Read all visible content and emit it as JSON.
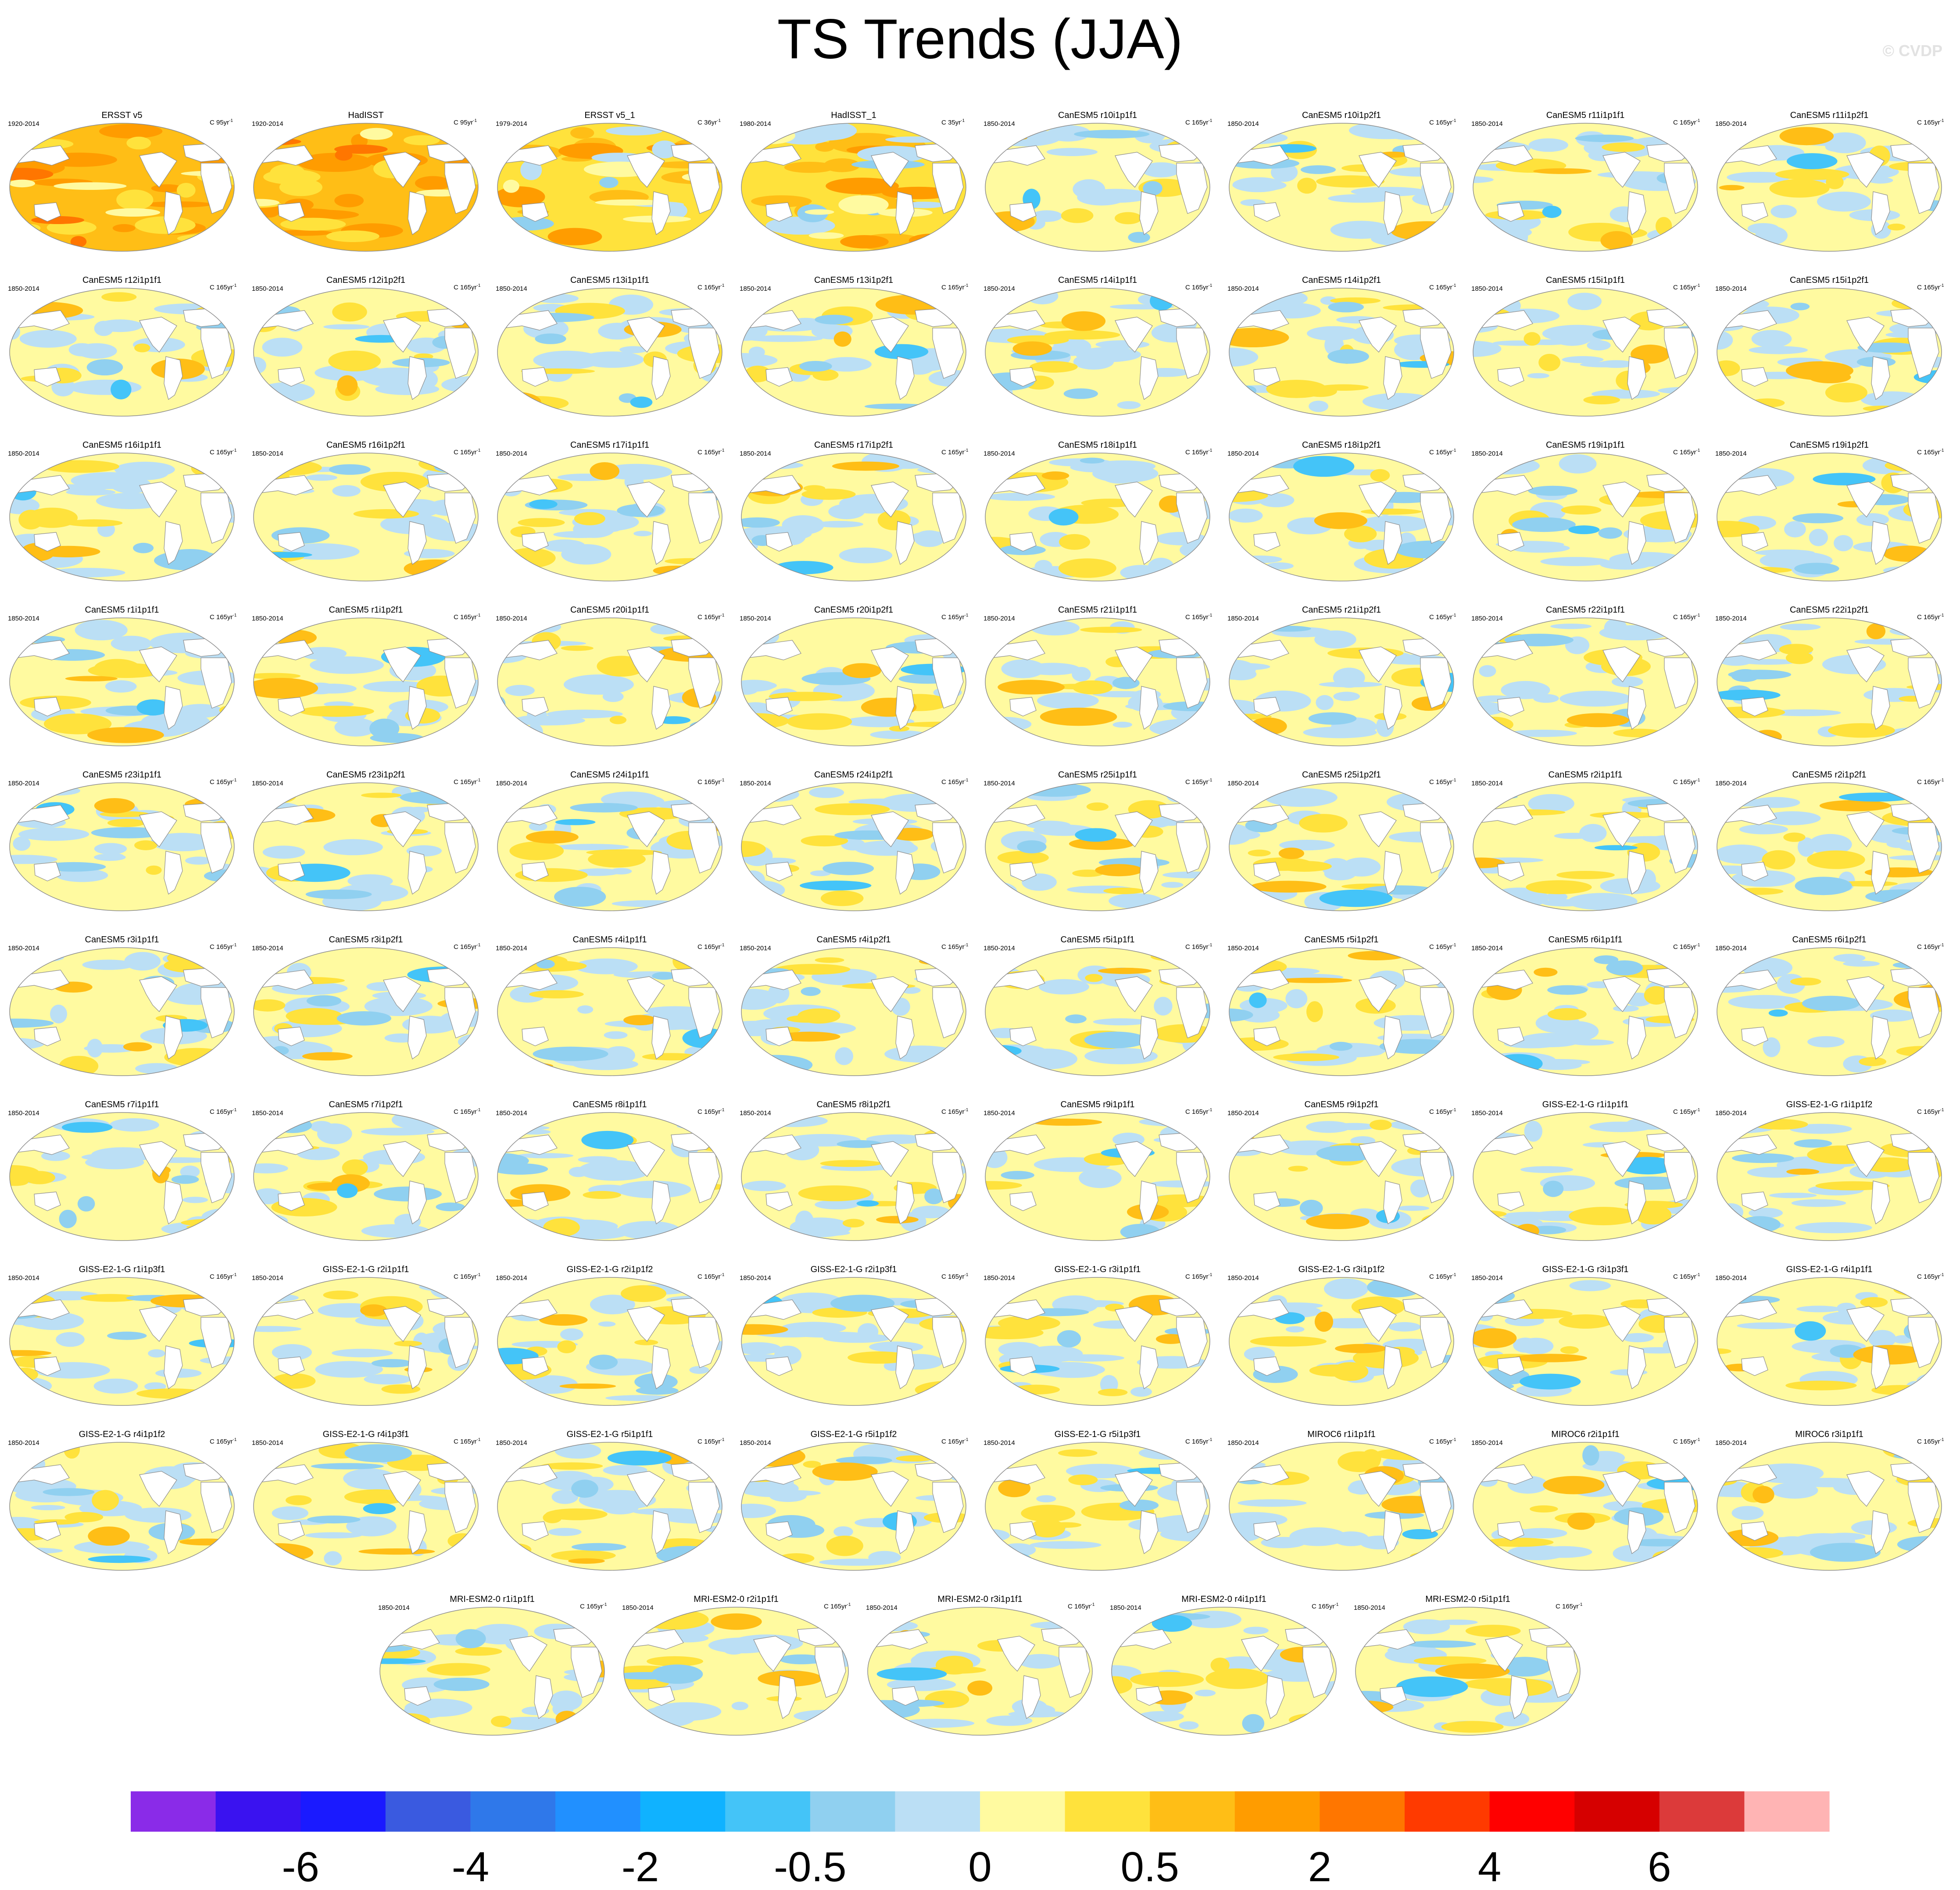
{
  "header": {
    "title": "TS Trends (JJA)",
    "watermark": "© CVDP"
  },
  "colors": {
    "land": "#ffffff",
    "coast": "#8c8c8c"
  },
  "chart_data": {
    "type": "heatmap",
    "title": "TS Trends (JJA)",
    "projection": "Robinson global map panels",
    "legend_placement": "bottom",
    "colorbar": {
      "tick_labels": [
        "-6",
        "-4",
        "-2",
        "-0.5",
        "0",
        "0.5",
        "2",
        "4",
        "6"
      ],
      "colors": [
        "#8a2be8",
        "#3a12f0",
        "#1a1aff",
        "#3a5ae0",
        "#2f78ea",
        "#2190ff",
        "#10b2ff",
        "#44c4f8",
        "#90d0f0",
        "#bbdff5",
        "#fffaa0",
        "#ffe23c",
        "#ffbe16",
        "#ff9c00",
        "#ff7600",
        "#ff3a00",
        "#ff0000",
        "#d60000",
        "#dc3a3a",
        "#ffb4b4"
      ]
    },
    "panels": [
      {
        "title": "ERSST v5",
        "left": "1920-2014",
        "right": "C 95yr",
        "pattern": "warm-strong"
      },
      {
        "title": "HadISST",
        "left": "1920-2014",
        "right": "C 95yr",
        "pattern": "warm-strong"
      },
      {
        "title": "ERSST v5_1",
        "left": "1979-2014",
        "right": "C 36yr",
        "pattern": "warm-mixed"
      },
      {
        "title": "HadISST_1",
        "left": "1980-2014",
        "right": "C 35yr",
        "pattern": "warm-mixed"
      },
      {
        "title": "CanESM5 r10i1p1f1",
        "left": "1850-2014",
        "right": "C 165yr",
        "pattern": "mixed"
      },
      {
        "title": "CanESM5 r10i1p2f1",
        "left": "1850-2014",
        "right": "C 165yr",
        "pattern": "mixed"
      },
      {
        "title": "CanESM5 r11i1p1f1",
        "left": "1850-2014",
        "right": "C 165yr",
        "pattern": "mixed"
      },
      {
        "title": "CanESM5 r11i1p2f1",
        "left": "1850-2014",
        "right": "C 165yr",
        "pattern": "mixed"
      },
      {
        "title": "CanESM5 r12i1p1f1",
        "left": "1850-2014",
        "right": "C 165yr",
        "pattern": "mixed"
      },
      {
        "title": "CanESM5 r12i1p2f1",
        "left": "1850-2014",
        "right": "C 165yr",
        "pattern": "mixed"
      },
      {
        "title": "CanESM5 r13i1p1f1",
        "left": "1850-2014",
        "right": "C 165yr",
        "pattern": "mixed"
      },
      {
        "title": "CanESM5 r13i1p2f1",
        "left": "1850-2014",
        "right": "C 165yr",
        "pattern": "mixed"
      },
      {
        "title": "CanESM5 r14i1p1f1",
        "left": "1850-2014",
        "right": "C 165yr",
        "pattern": "mixed"
      },
      {
        "title": "CanESM5 r14i1p2f1",
        "left": "1850-2014",
        "right": "C 165yr",
        "pattern": "mixed"
      },
      {
        "title": "CanESM5 r15i1p1f1",
        "left": "1850-2014",
        "right": "C 165yr",
        "pattern": "mixed"
      },
      {
        "title": "CanESM5 r15i1p2f1",
        "left": "1850-2014",
        "right": "C 165yr",
        "pattern": "mixed"
      },
      {
        "title": "CanESM5 r16i1p1f1",
        "left": "1850-2014",
        "right": "C 165yr",
        "pattern": "mixed"
      },
      {
        "title": "CanESM5 r16i1p2f1",
        "left": "1850-2014",
        "right": "C 165yr",
        "pattern": "mixed"
      },
      {
        "title": "CanESM5 r17i1p1f1",
        "left": "1850-2014",
        "right": "C 165yr",
        "pattern": "mixed"
      },
      {
        "title": "CanESM5 r17i1p2f1",
        "left": "1850-2014",
        "right": "C 165yr",
        "pattern": "mixed"
      },
      {
        "title": "CanESM5 r18i1p1f1",
        "left": "1850-2014",
        "right": "C 165yr",
        "pattern": "mixed"
      },
      {
        "title": "CanESM5 r18i1p2f1",
        "left": "1850-2014",
        "right": "C 165yr",
        "pattern": "mixed"
      },
      {
        "title": "CanESM5 r19i1p1f1",
        "left": "1850-2014",
        "right": "C 165yr",
        "pattern": "mixed"
      },
      {
        "title": "CanESM5 r19i1p2f1",
        "left": "1850-2014",
        "right": "C 165yr",
        "pattern": "mixed"
      },
      {
        "title": "CanESM5 r1i1p1f1",
        "left": "1850-2014",
        "right": "C 165yr",
        "pattern": "mixed"
      },
      {
        "title": "CanESM5 r1i1p2f1",
        "left": "1850-2014",
        "right": "C 165yr",
        "pattern": "mixed"
      },
      {
        "title": "CanESM5 r20i1p1f1",
        "left": "1850-2014",
        "right": "C 165yr",
        "pattern": "mixed"
      },
      {
        "title": "CanESM5 r20i1p2f1",
        "left": "1850-2014",
        "right": "C 165yr",
        "pattern": "mixed"
      },
      {
        "title": "CanESM5 r21i1p1f1",
        "left": "1850-2014",
        "right": "C 165yr",
        "pattern": "mixed"
      },
      {
        "title": "CanESM5 r21i1p2f1",
        "left": "1850-2014",
        "right": "C 165yr",
        "pattern": "mixed"
      },
      {
        "title": "CanESM5 r22i1p1f1",
        "left": "1850-2014",
        "right": "C 165yr",
        "pattern": "mixed"
      },
      {
        "title": "CanESM5 r22i1p2f1",
        "left": "1850-2014",
        "right": "C 165yr",
        "pattern": "mixed"
      },
      {
        "title": "CanESM5 r23i1p1f1",
        "left": "1850-2014",
        "right": "C 165yr",
        "pattern": "mixed"
      },
      {
        "title": "CanESM5 r23i1p2f1",
        "left": "1850-2014",
        "right": "C 165yr",
        "pattern": "mixed"
      },
      {
        "title": "CanESM5 r24i1p1f1",
        "left": "1850-2014",
        "right": "C 165yr",
        "pattern": "mixed"
      },
      {
        "title": "CanESM5 r24i1p2f1",
        "left": "1850-2014",
        "right": "C 165yr",
        "pattern": "mixed"
      },
      {
        "title": "CanESM5 r25i1p1f1",
        "left": "1850-2014",
        "right": "C 165yr",
        "pattern": "mixed"
      },
      {
        "title": "CanESM5 r25i1p2f1",
        "left": "1850-2014",
        "right": "C 165yr",
        "pattern": "mixed"
      },
      {
        "title": "CanESM5 r2i1p1f1",
        "left": "1850-2014",
        "right": "C 165yr",
        "pattern": "mixed"
      },
      {
        "title": "CanESM5 r2i1p2f1",
        "left": "1850-2014",
        "right": "C 165yr",
        "pattern": "mixed"
      },
      {
        "title": "CanESM5 r3i1p1f1",
        "left": "1850-2014",
        "right": "C 165yr",
        "pattern": "mixed"
      },
      {
        "title": "CanESM5 r3i1p2f1",
        "left": "1850-2014",
        "right": "C 165yr",
        "pattern": "mixed"
      },
      {
        "title": "CanESM5 r4i1p1f1",
        "left": "1850-2014",
        "right": "C 165yr",
        "pattern": "mixed"
      },
      {
        "title": "CanESM5 r4i1p2f1",
        "left": "1850-2014",
        "right": "C 165yr",
        "pattern": "mixed"
      },
      {
        "title": "CanESM5 r5i1p1f1",
        "left": "1850-2014",
        "right": "C 165yr",
        "pattern": "mixed"
      },
      {
        "title": "CanESM5 r5i1p2f1",
        "left": "1850-2014",
        "right": "C 165yr",
        "pattern": "mixed"
      },
      {
        "title": "CanESM5 r6i1p1f1",
        "left": "1850-2014",
        "right": "C 165yr",
        "pattern": "mixed"
      },
      {
        "title": "CanESM5 r6i1p2f1",
        "left": "1850-2014",
        "right": "C 165yr",
        "pattern": "mixed"
      },
      {
        "title": "CanESM5 r7i1p1f1",
        "left": "1850-2014",
        "right": "C 165yr",
        "pattern": "mixed"
      },
      {
        "title": "CanESM5 r7i1p2f1",
        "left": "1850-2014",
        "right": "C 165yr",
        "pattern": "mixed"
      },
      {
        "title": "CanESM5 r8i1p1f1",
        "left": "1850-2014",
        "right": "C 165yr",
        "pattern": "mixed"
      },
      {
        "title": "CanESM5 r8i1p2f1",
        "left": "1850-2014",
        "right": "C 165yr",
        "pattern": "mixed"
      },
      {
        "title": "CanESM5 r9i1p1f1",
        "left": "1850-2014",
        "right": "C 165yr",
        "pattern": "mixed"
      },
      {
        "title": "CanESM5 r9i1p2f1",
        "left": "1850-2014",
        "right": "C 165yr",
        "pattern": "mixed"
      },
      {
        "title": "GISS-E2-1-G r1i1p1f1",
        "left": "1850-2014",
        "right": "C 165yr",
        "pattern": "mixed"
      },
      {
        "title": "GISS-E2-1-G r1i1p1f2",
        "left": "1850-2014",
        "right": "C 165yr",
        "pattern": "mixed"
      },
      {
        "title": "GISS-E2-1-G r1i1p3f1",
        "left": "1850-2014",
        "right": "C 165yr",
        "pattern": "mixed"
      },
      {
        "title": "GISS-E2-1-G r2i1p1f1",
        "left": "1850-2014",
        "right": "C 165yr",
        "pattern": "mixed"
      },
      {
        "title": "GISS-E2-1-G r2i1p1f2",
        "left": "1850-2014",
        "right": "C 165yr",
        "pattern": "mixed"
      },
      {
        "title": "GISS-E2-1-G r2i1p3f1",
        "left": "1850-2014",
        "right": "C 165yr",
        "pattern": "mixed"
      },
      {
        "title": "GISS-E2-1-G r3i1p1f1",
        "left": "1850-2014",
        "right": "C 165yr",
        "pattern": "mixed"
      },
      {
        "title": "GISS-E2-1-G r3i1p1f2",
        "left": "1850-2014",
        "right": "C 165yr",
        "pattern": "mixed"
      },
      {
        "title": "GISS-E2-1-G r3i1p3f1",
        "left": "1850-2014",
        "right": "C 165yr",
        "pattern": "mixed"
      },
      {
        "title": "GISS-E2-1-G r4i1p1f1",
        "left": "1850-2014",
        "right": "C 165yr",
        "pattern": "mixed"
      },
      {
        "title": "GISS-E2-1-G r4i1p1f2",
        "left": "1850-2014",
        "right": "C 165yr",
        "pattern": "mixed"
      },
      {
        "title": "GISS-E2-1-G r4i1p3f1",
        "left": "1850-2014",
        "right": "C 165yr",
        "pattern": "mixed"
      },
      {
        "title": "GISS-E2-1-G r5i1p1f1",
        "left": "1850-2014",
        "right": "C 165yr",
        "pattern": "mixed"
      },
      {
        "title": "GISS-E2-1-G r5i1p1f2",
        "left": "1850-2014",
        "right": "C 165yr",
        "pattern": "mixed"
      },
      {
        "title": "GISS-E2-1-G r5i1p3f1",
        "left": "1850-2014",
        "right": "C 165yr",
        "pattern": "mixed"
      },
      {
        "title": "MIROC6 r1i1p1f1",
        "left": "1850-2014",
        "right": "C 165yr",
        "pattern": "mixed"
      },
      {
        "title": "MIROC6 r2i1p1f1",
        "left": "1850-2014",
        "right": "C 165yr",
        "pattern": "mixed"
      },
      {
        "title": "MIROC6 r3i1p1f1",
        "left": "1850-2014",
        "right": "C 165yr",
        "pattern": "mixed"
      },
      {
        "title": "MRI-ESM2-0 r1i1p1f1",
        "left": "1850-2014",
        "right": "C 165yr",
        "pattern": "mixed"
      },
      {
        "title": "MRI-ESM2-0 r2i1p1f1",
        "left": "1850-2014",
        "right": "C 165yr",
        "pattern": "mixed"
      },
      {
        "title": "MRI-ESM2-0 r3i1p1f1",
        "left": "1850-2014",
        "right": "C 165yr",
        "pattern": "mixed"
      },
      {
        "title": "MRI-ESM2-0 r4i1p1f1",
        "left": "1850-2014",
        "right": "C 165yr",
        "pattern": "mixed"
      },
      {
        "title": "MRI-ESM2-0 r5i1p1f1",
        "left": "1850-2014",
        "right": "C 165yr",
        "pattern": "mixed"
      }
    ]
  }
}
